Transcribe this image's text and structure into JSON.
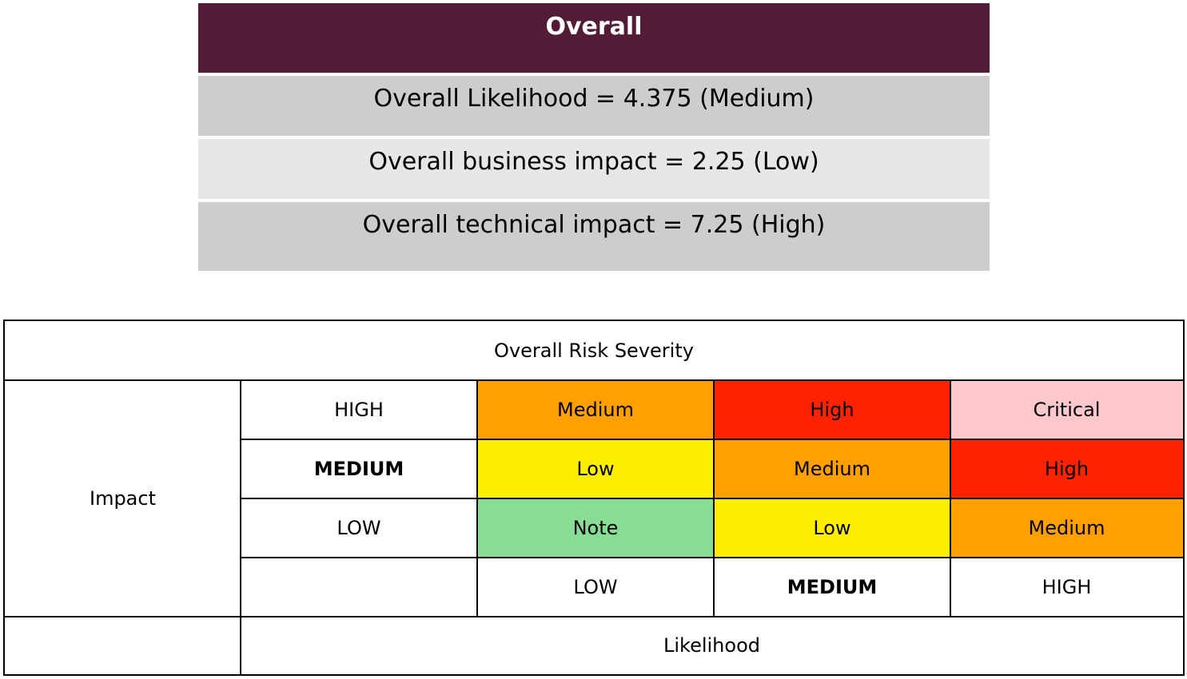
{
  "summary": {
    "title": "Overall",
    "rows": [
      "Overall Likelihood = 4.375 (Medium)",
      "Overall business impact = 2.25 (Low)",
      "Overall technical impact = 7.25 (High)"
    ]
  },
  "matrix": {
    "title": "Overall Risk Severity",
    "impact_label": "Impact",
    "likelihood_label": "Likelihood",
    "impact_levels": [
      "HIGH",
      "MEDIUM",
      "LOW"
    ],
    "likelihood_levels": [
      "LOW",
      "MEDIUM",
      "HIGH"
    ],
    "grid": [
      [
        "Medium",
        "High",
        "Critical"
      ],
      [
        "Low",
        "Medium",
        "High"
      ],
      [
        "Note",
        "Low",
        "Medium"
      ]
    ],
    "colors": {
      "Note": "#88dd95",
      "Low": "#ffee00",
      "Medium": "#ffa000",
      "High": "#ff2200",
      "Critical": "#ffc8cc"
    },
    "highlighted": {
      "impact": "MEDIUM",
      "likelihood": "MEDIUM"
    }
  },
  "theme": {
    "header_bg": "#521c37",
    "row_dark_bg": "#cfcccd",
    "row_light_bg": "#e8e6e7"
  }
}
